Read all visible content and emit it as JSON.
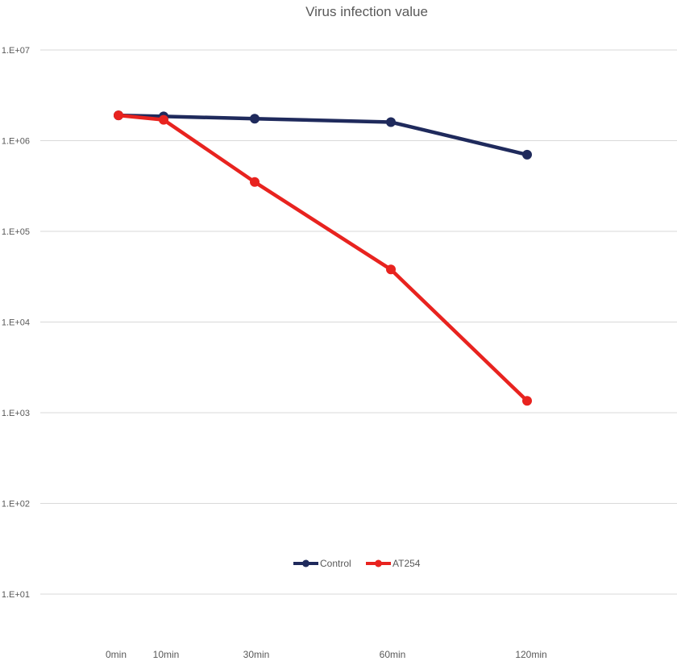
{
  "chart_data": {
    "type": "line",
    "title": "Virus infection value",
    "xlabel": "",
    "ylabel": "",
    "y_scale": "log",
    "ylim": [
      5,
      10000000
    ],
    "y_ticks": [
      10,
      100,
      1000,
      10000,
      100000,
      1000000,
      10000000
    ],
    "y_tick_labels": [
      "1.E+01",
      "1.E+02",
      "1.E+03",
      "1.E+04",
      "1.E+05",
      "1.E+06",
      "1.E+07"
    ],
    "x": [
      0,
      10,
      30,
      60,
      120
    ],
    "x_tick_labels": [
      "0min",
      "10min",
      "30min",
      "60min",
      "120min"
    ],
    "x_scale_note": "",
    "grid": true,
    "legend_position": "bottom-center",
    "series": [
      {
        "name": "Control",
        "color": "#1f2a5c",
        "values": [
          1900000,
          1850000,
          1750000,
          1600000,
          700000
        ]
      },
      {
        "name": "AT254",
        "color": "#e8231f",
        "values": [
          1900000,
          1700000,
          350000,
          38000,
          1350
        ]
      }
    ]
  }
}
